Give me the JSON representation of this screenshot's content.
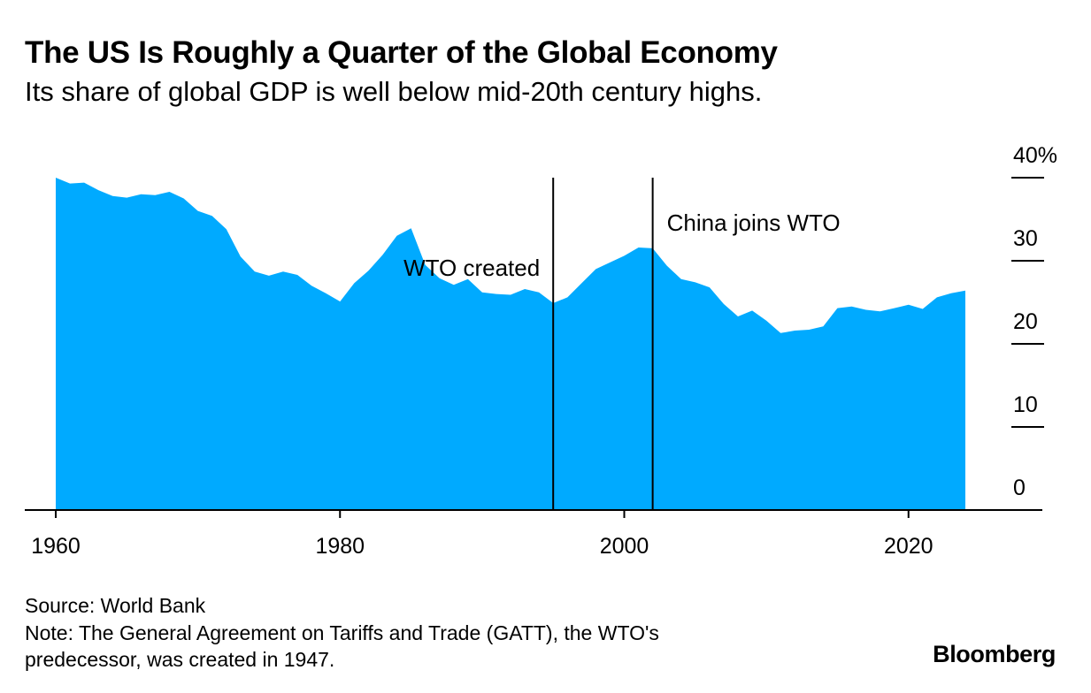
{
  "header": {
    "title": "The US Is Roughly a Quarter of the Global Economy",
    "subtitle": "Its share of global GDP is well below mid-20th century highs."
  },
  "footer": {
    "source": "Source: World Bank",
    "note_line1": "Note: The General Agreement on Tariffs and Trade (GATT), the WTO's",
    "note_line2": "predecessor, was created in 1947.",
    "brand": "Bloomberg"
  },
  "colors": {
    "area": "#00aaff",
    "text": "#000000",
    "axis": "#000000"
  },
  "chart_data": {
    "type": "area",
    "title": "The US Is Roughly a Quarter of the Global Economy",
    "subtitle": "Its share of global GDP is well below mid-20th century highs.",
    "xlim": [
      1960,
      2029
    ],
    "ylim": [
      0,
      40
    ],
    "x_ticks": [
      1960,
      1980,
      2000,
      2020
    ],
    "x_tick_labels": [
      "1960",
      "1980",
      "2000",
      "2020"
    ],
    "y_ticks": [
      0,
      10,
      20,
      30,
      40
    ],
    "y_tick_labels": [
      "0",
      "10",
      "20",
      "30",
      "40%"
    ],
    "y_axis_side": "right",
    "grid": false,
    "series": [
      {
        "x": [
          1960,
          1961,
          1962,
          1963,
          1964,
          1965,
          1966,
          1967,
          1968,
          1969,
          1970,
          1971,
          1972,
          1973,
          1974,
          1975,
          1976,
          1977,
          1978,
          1979,
          1980,
          1981,
          1982,
          1983,
          1984,
          1985,
          1986,
          1987,
          1988,
          1989,
          1990,
          1991,
          1992,
          1993,
          1994,
          1995,
          1996,
          1997,
          1998,
          1999,
          2000,
          2001,
          2002,
          2003,
          2004,
          2005,
          2006,
          2007,
          2008,
          2009,
          2010,
          2011,
          2012,
          2013,
          2014,
          2015,
          2016,
          2017,
          2018,
          2019,
          2020,
          2021,
          2022,
          2023,
          2024
        ],
        "values": [
          40.0,
          39.3,
          39.4,
          38.5,
          37.8,
          37.6,
          38.0,
          37.9,
          38.3,
          37.5,
          36.0,
          35.4,
          33.8,
          30.5,
          28.7,
          28.2,
          28.7,
          28.3,
          27.0,
          26.1,
          25.1,
          27.3,
          28.8,
          30.7,
          33.0,
          33.9,
          29.5,
          27.9,
          27.1,
          27.8,
          26.2,
          26.0,
          25.9,
          26.6,
          26.2,
          24.9,
          25.6,
          27.3,
          29.0,
          29.8,
          30.6,
          31.6,
          31.5,
          29.4,
          27.8,
          27.4,
          26.8,
          24.8,
          23.3,
          24.0,
          22.8,
          21.3,
          21.6,
          21.7,
          22.1,
          24.3,
          24.5,
          24.1,
          23.9,
          24.3,
          24.7,
          24.2,
          25.6,
          26.1,
          26.4
        ]
      }
    ],
    "annotations": [
      {
        "x": 1995,
        "label": "WTO created"
      },
      {
        "x": 2002,
        "label": "China joins WTO"
      }
    ]
  }
}
